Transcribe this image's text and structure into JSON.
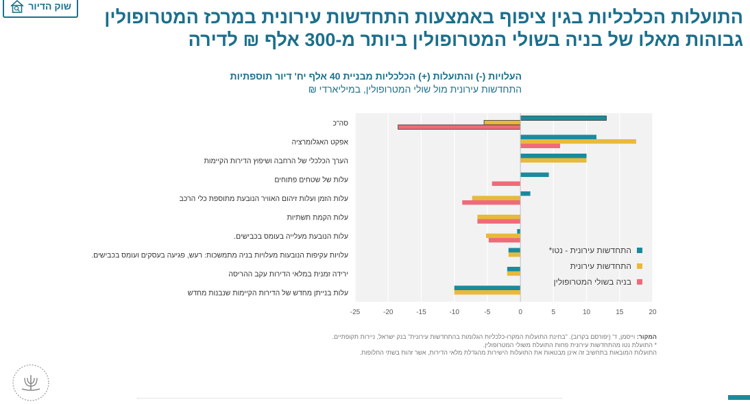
{
  "badge": {
    "label": "שוק הדיור",
    "icon": "house-search-icon"
  },
  "title": {
    "line1": "התועלות הכלכליות בגין ציפוף באמצעות התחדשות עירונית במרכז המטרופולין",
    "line2": "גבוהות מאלו של בניה בשולי המטרופולין ביותר מ-300 אלף ₪ לדירה"
  },
  "chart_data": {
    "type": "bar",
    "orientation": "horizontal",
    "title": "העלויות (-) והתועלות (+) הכלכליות מבניית 40 אלף יח' דיור תוספתיות",
    "subtitle": "התחדשות עירונית מול שולי המטרופולין, במיליארדי ₪",
    "categories": [
      "סה\"כ",
      "אפקט האגלומרציה",
      "הערך הכלכלי של הרחבה ושיפוץ הדירות הקיימות",
      "עלות של  שטחים פתוחים",
      "עלות הזמן ועלות זיהום האוויר הנובעת מתוספת כלי הרכב",
      "עלות הקמת תשתיות",
      "עלות הנובעת מעלייה בעומס בכבישים.",
      "עלויות עקיפות הנובעות מעלויות בניה מתמשכות: רעש, פגיעה בעסקים ועומס בכבישים.",
      "ירידה זמנית במלאי הדירות עקב ההריסה",
      "עלות בנייתן מחדש של הדירות הקיימות שנבנות מחדש"
    ],
    "series": [
      {
        "name": "התחדשות עירונית - נטו*",
        "color": "#1b8a9c",
        "values": [
          13,
          11.5,
          10,
          4.3,
          1.5,
          0,
          -0.5,
          -1.8,
          -2,
          -10
        ]
      },
      {
        "name": "התחדשות עירונית",
        "color": "#e8b93b",
        "values": [
          -5.5,
          17.5,
          10,
          0,
          -7.3,
          -6.5,
          -5.2,
          -1.8,
          -2,
          -10
        ]
      },
      {
        "name": "בניה בשולי המטרופולין",
        "color": "#ef6a7a",
        "values": [
          -18.5,
          6,
          0,
          -4.3,
          -8.8,
          -6.5,
          -4.8,
          0,
          0,
          0
        ]
      }
    ],
    "xlim": [
      -25,
      20
    ],
    "xticks": [
      -25,
      -20,
      -15,
      -10,
      -5,
      0,
      5,
      10,
      15,
      20
    ],
    "grid": "vertical",
    "legend": "bottom-right"
  },
  "footnotes": {
    "source_label": "המקור:",
    "source_text": " וייסמן, ד' (יפורסם בקרוב). \"בחינת התועלות המקרו-כלכליות הגלומות בהתחדשות עירונית\" בנק ישראל, ניירות תקופתיים.",
    "note1": "* התועלת נטו מהתחדשות עירונית פחות התועלת משולי המטרופולין.",
    "note2": "התועלות המובאות בתחשיב זה אינן מבטאות את התועלות הישירות מהגדלת מלאי הדירות, אשר זהות בשתי החלופות."
  },
  "logo": {
    "name": "bank-of-israel-logo"
  }
}
